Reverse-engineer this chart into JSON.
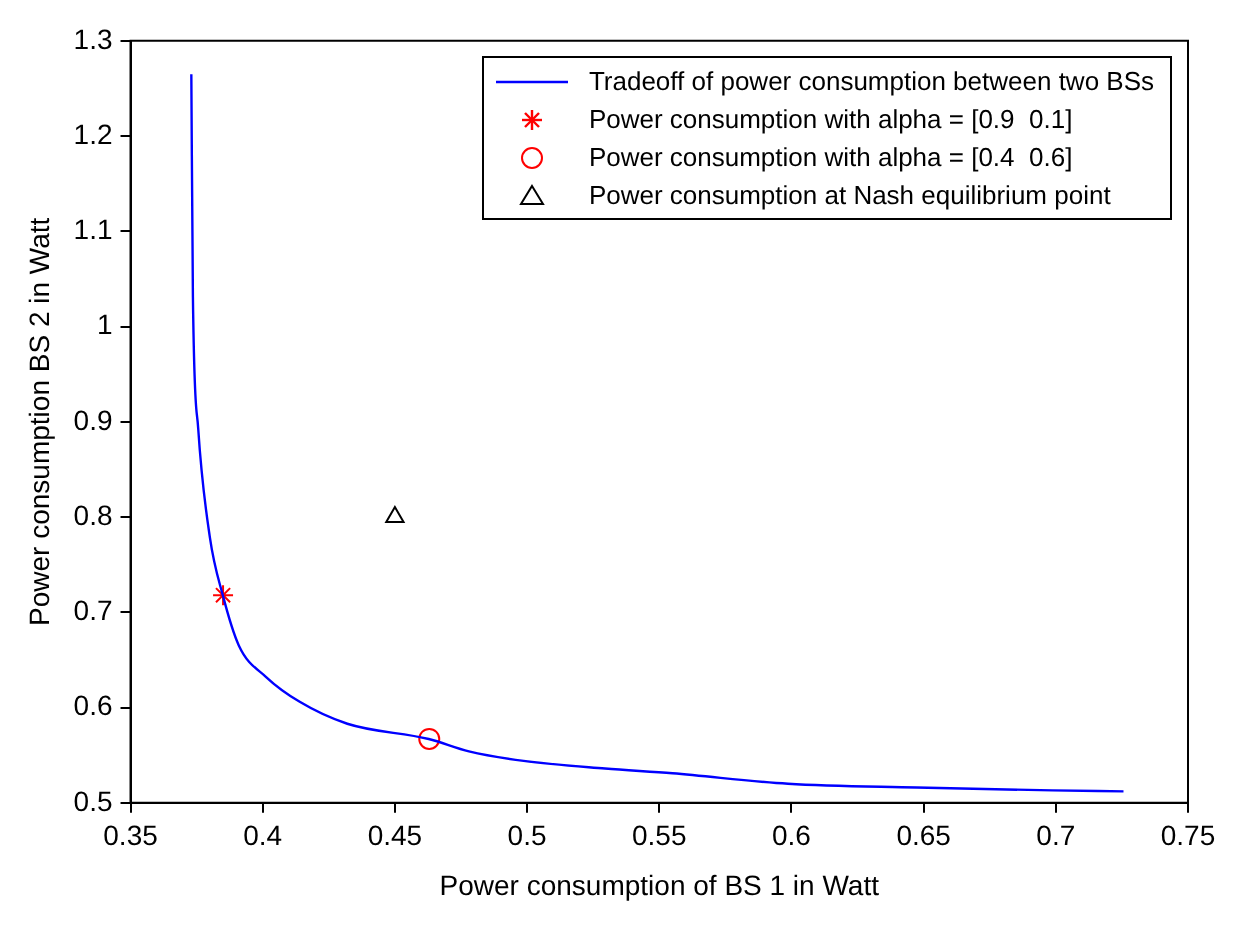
{
  "chart_data": {
    "type": "line",
    "xlabel": "Power consumption of BS 1 in Watt",
    "ylabel": "Power consumption BS 2 in Watt",
    "xlim": [
      0.35,
      0.75
    ],
    "xticks": [
      0.35,
      0.4,
      0.45,
      0.5,
      0.55,
      0.6,
      0.65,
      0.7,
      0.75
    ],
    "ylim": [
      0.5,
      1.3
    ],
    "yticks": [
      0.5,
      0.6,
      0.7,
      0.8,
      0.9,
      1,
      1.1,
      1.2,
      1.3
    ],
    "legend": "top right",
    "series": [
      {
        "name": "Tradeoff of power consumption between two BSs",
        "color": "#0000ff",
        "marker": "none",
        "x": [
          0.373,
          0.3736,
          0.3756,
          0.38,
          0.3849,
          0.391,
          0.4013,
          0.414,
          0.432,
          0.4628,
          0.478,
          0.4987,
          0.5295,
          0.555,
          0.5987,
          0.6474,
          0.6987,
          0.7256
        ],
        "values": [
          1.265,
          1.031,
          0.893,
          0.779,
          0.718,
          0.665,
          0.632,
          0.606,
          0.583,
          0.567,
          0.554,
          0.544,
          0.536,
          0.531,
          0.52,
          0.516,
          0.513,
          0.512
        ]
      },
      {
        "name": "Power consumption with alpha = [0.9  0.1]",
        "type": "scatter",
        "color": "#ff0000",
        "marker": "cross",
        "x": [
          0.385
        ],
        "values": [
          0.718
        ]
      },
      {
        "name": "Power consumption with alpha = [0.4  0.6]",
        "type": "scatter",
        "color": "#ff0000",
        "marker": "circle",
        "x": [
          0.463
        ],
        "values": [
          0.567
        ]
      },
      {
        "name": "Power consumption at Nash equilibrium point",
        "type": "scatter",
        "color": "#000000",
        "marker": "triangle",
        "x": [
          0.45
        ],
        "values": [
          0.8
        ]
      }
    ]
  }
}
